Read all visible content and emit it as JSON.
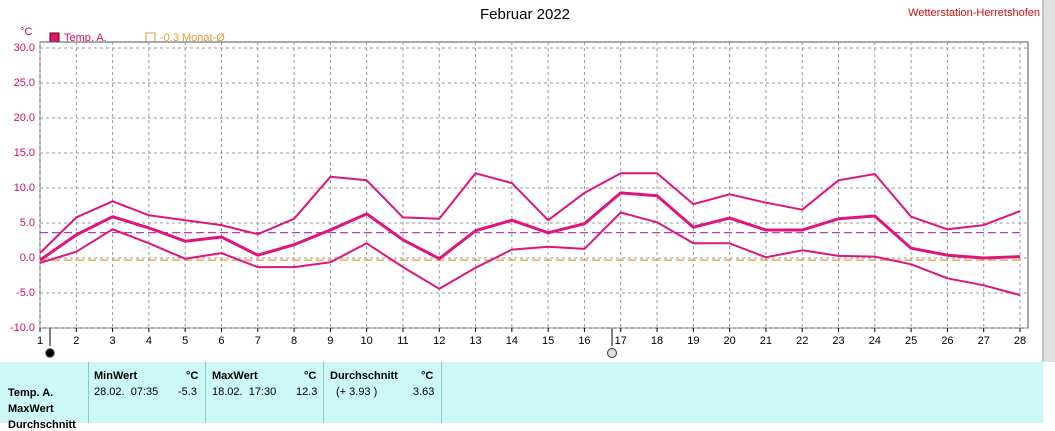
{
  "chart_data": {
    "type": "line",
    "title": "Februar 2022",
    "station": "Wetterstation-Herretshofen",
    "y_unit": "°C",
    "x": [
      1,
      2,
      3,
      4,
      5,
      6,
      7,
      8,
      9,
      10,
      11,
      12,
      13,
      14,
      15,
      16,
      17,
      18,
      19,
      20,
      21,
      22,
      23,
      24,
      25,
      26,
      27,
      28
    ],
    "series": [
      {
        "name": "Temp. A.",
        "color": "#e0147a",
        "values": [
          -0.3,
          3.3,
          5.9,
          4.3,
          2.4,
          3.0,
          0.4,
          1.9,
          4.0,
          6.3,
          2.6,
          -0.1,
          3.9,
          5.4,
          3.6,
          4.9,
          9.3,
          8.9,
          4.4,
          5.7,
          4.0,
          4.0,
          5.6,
          6.0,
          1.4,
          0.4,
          0.0,
          0.2
        ]
      },
      {
        "color": "#e0147a",
        "values": [
          0.7,
          5.8,
          8.1,
          6.1,
          5.4,
          4.7,
          3.4,
          5.6,
          11.6,
          11.1,
          5.8,
          5.6,
          12.1,
          10.7,
          5.4,
          9.3,
          12.1,
          12.1,
          7.7,
          9.1,
          7.9,
          6.9,
          11.1,
          12.0,
          5.9,
          4.1,
          4.7,
          6.7
        ]
      },
      {
        "color": "#e0147a",
        "values": [
          -0.7,
          0.9,
          4.1,
          2.1,
          -0.1,
          0.7,
          -1.3,
          -1.3,
          -0.6,
          2.1,
          -1.3,
          -4.4,
          -1.4,
          1.2,
          1.6,
          1.3,
          6.5,
          5.1,
          2.1,
          2.1,
          0.1,
          1.1,
          0.3,
          0.2,
          -0.9,
          -2.9,
          -3.9,
          -5.3
        ]
      }
    ],
    "reference_line": {
      "value": -0.3,
      "label": "-0.3 Monat-Ø",
      "color": "#e89a30"
    },
    "mean_line": {
      "value": 3.63,
      "color": "#b040c0"
    },
    "xlim": [
      1,
      28
    ],
    "xticks": [
      1,
      2,
      3,
      4,
      5,
      6,
      7,
      8,
      9,
      10,
      11,
      12,
      13,
      14,
      15,
      16,
      17,
      18,
      19,
      20,
      21,
      22,
      23,
      24,
      25,
      26,
      27,
      28
    ],
    "ylim": [
      -10,
      30
    ],
    "yticks": [
      {
        "value": -10,
        "label": "-10.0"
      },
      {
        "value": -5,
        "label": "-5.0"
      },
      {
        "value": 0,
        "label": "0.0"
      },
      {
        "value": 5,
        "label": "5.0"
      },
      {
        "value": 10,
        "label": "10.0"
      },
      {
        "value": 15,
        "label": "15.0"
      },
      {
        "value": 20,
        "label": "20.0"
      },
      {
        "value": 25,
        "label": "25.0"
      },
      {
        "value": 30,
        "label": "30.0"
      }
    ],
    "grid": true
  },
  "table": {
    "row_labels": [
      "Temp. A.",
      "MaxWert",
      "Durchschnitt"
    ],
    "columns": [
      {
        "header": "MinWert",
        "unit": "°C"
      },
      {
        "header": "MaxWert",
        "unit": "°C"
      },
      {
        "header": "Durchschnitt",
        "unit": "°C"
      }
    ],
    "rows": [
      [
        "28.02.  07:35",
        "-5.3",
        "18.02.  17:30",
        "12.3",
        "(+ 3.93 )",
        "3.63"
      ]
    ]
  }
}
